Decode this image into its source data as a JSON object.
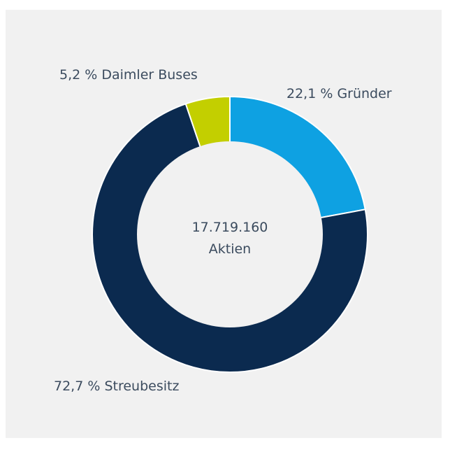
{
  "chart_data": {
    "type": "pie",
    "variant": "donut",
    "center_text": [
      "17.719.160",
      "Aktien"
    ],
    "slices": [
      {
        "label": "22,1 % Gründer",
        "value": 22.1,
        "color": "#0ea1e2"
      },
      {
        "label": "72,7 % Streubesitz",
        "value": 72.7,
        "color": "#0b2a4f"
      },
      {
        "label": "5,2 % Daimler Buses",
        "value": 5.2,
        "color": "#c3cf00"
      }
    ],
    "start_angle_deg": 0,
    "direction": "clockwise",
    "background_color": "#f1f1f1",
    "text_color": "#3b4b5e"
  }
}
